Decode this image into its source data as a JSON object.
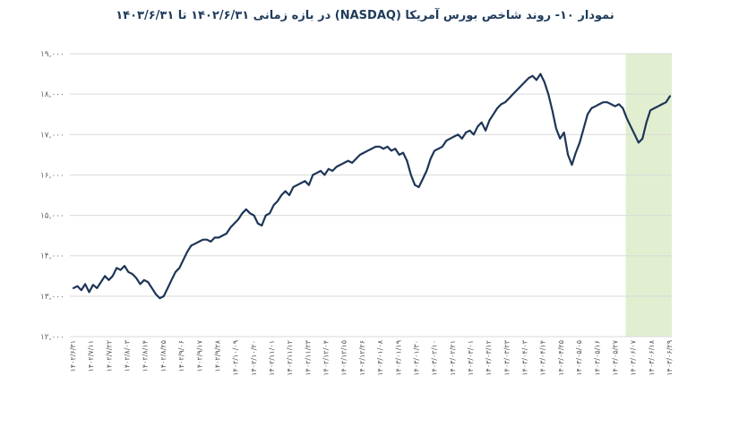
{
  "chart_data": {
    "type": "line",
    "title": "نمودار ۱۰- روند شاخص بورس آمریکا (NASDAQ) در بازه زمانی ۱۴۰۲/۶/۳۱ تا ۱۴۰۳/۶/۳۱",
    "xlabel": "",
    "ylabel": "",
    "ylim": [
      12000,
      19000
    ],
    "y_ticks": [
      12000,
      13000,
      14000,
      15000,
      16000,
      17000,
      18000,
      19000
    ],
    "y_tick_labels": [
      "۱۲,۰۰۰",
      "۱۳,۰۰۰",
      "۱۴,۰۰۰",
      "۱۵,۰۰۰",
      "۱۶,۰۰۰",
      "۱۷,۰۰۰",
      "۱۸,۰۰۰",
      "۱۹,۰۰۰"
    ],
    "grid": true,
    "x_tick_labels": [
      "۱۴۰۲/۶/۳۱",
      "۱۴۰۲/۷/۱۱",
      "۱۴۰۲/۷/۲۲",
      "۱۴۰۲/۸/۰۳",
      "۱۴۰۲/۸/۱۴",
      "۱۴۰۲/۸/۲۵",
      "۱۴۰۲/۹/۰۶",
      "۱۴۰۲/۹/۱۷",
      "۱۴۰۲/۹/۲۸",
      "۱۴۰۲/۱۰/۰۹",
      "۱۴۰۲/۱۰/۲۰",
      "۱۴۰۲/۱۱/۰۱",
      "۱۴۰۲/۱۱/۱۲",
      "۱۴۰۲/۱۱/۲۳",
      "۱۴۰۲/۱۲/۰۴",
      "۱۴۰۲/۱۲/۱۵",
      "۱۴۰۲/۱۲/۲۶",
      "۱۴۰۳/۰۱/۰۸",
      "۱۴۰۳/۰۱/۱۹",
      "۱۴۰۳/۰۱/۳۰",
      "۱۴۰۳/۰۲/۱۰",
      "۱۴۰۳/۰۲/۲۱",
      "۱۴۰۳/۰۳/۰۱",
      "۱۴۰۳/۰۳/۱۲",
      "۱۴۰۳/۰۳/۲۳",
      "۱۴۰۳/۰۴/۰۳",
      "۱۴۰۳/۰۴/۱۴",
      "۱۴۰۳/۰۴/۲۵",
      "۱۴۰۳/۰۵/۰۵",
      "۱۴۰۳/۰۵/۱۶",
      "۱۴۰۳/۰۵/۲۷",
      "۱۴۰۳/۰۶/۰۷",
      "۱۴۰۳/۰۶/۱۸",
      "۱۴۰۳/۰۶/۲۹"
    ],
    "highlight": {
      "from_index": 30.6,
      "to_index": 33.5,
      "color": "#e2eed0"
    },
    "line_color": "#1d3557",
    "series": [
      {
        "values": [
          13200,
          13250,
          13150,
          13300,
          13100,
          13280,
          13200,
          13350,
          13500,
          13400,
          13500,
          13700,
          13650,
          13750,
          13600,
          13550,
          13450,
          13300,
          13400,
          13350,
          13200,
          13050,
          12950,
          13000,
          13200,
          13400,
          13600,
          13700,
          13900,
          14100,
          14250,
          14300,
          14350,
          14400,
          14400,
          14350,
          14450,
          14450,
          14500,
          14550,
          14700,
          14800,
          14900,
          15050,
          15150,
          15050,
          15000,
          14800,
          14750,
          15000,
          15050,
          15250,
          15350,
          15500,
          15600,
          15500,
          15700,
          15750,
          15800,
          15850,
          15750,
          16000,
          16050,
          16100,
          16000,
          16150,
          16100,
          16200,
          16250,
          16300,
          16350,
          16300,
          16400,
          16500,
          16550,
          16600,
          16650,
          16700,
          16700,
          16650,
          16700,
          16600,
          16650,
          16500,
          16550,
          16350,
          16000,
          15750,
          15700,
          15900,
          16100,
          16400,
          16600,
          16650,
          16700,
          16850,
          16900,
          16950,
          17000,
          16900,
          17050,
          17100,
          17000,
          17200,
          17300,
          17100,
          17350,
          17500,
          17650,
          17750,
          17800,
          17900,
          18000,
          18100,
          18200,
          18300,
          18400,
          18450,
          18350,
          18500,
          18300,
          18000,
          17600,
          17150,
          16900,
          17050,
          16500,
          16250,
          16550,
          16800,
          17150,
          17500,
          17650,
          17700,
          17750,
          17800,
          17800,
          17750,
          17700,
          17750,
          17650,
          17400,
          17200,
          17000,
          16800,
          16900,
          17300,
          17600,
          17650,
          17700,
          17750,
          17800,
          17950
        ]
      }
    ]
  }
}
